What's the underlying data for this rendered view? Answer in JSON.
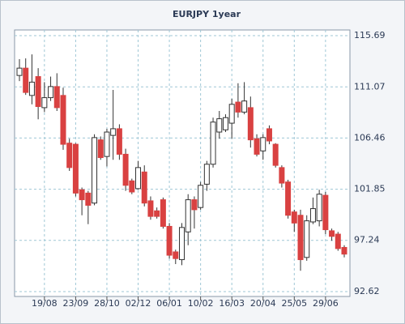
{
  "chart_data": {
    "type": "candlestick",
    "title": "EURJPY 1year",
    "categories": [
      null,
      null,
      null,
      null,
      "19/08",
      null,
      null,
      null,
      null,
      "23/09",
      null,
      null,
      null,
      null,
      "28/10",
      null,
      null,
      null,
      null,
      "02/12",
      null,
      null,
      null,
      null,
      "06/01",
      null,
      null,
      null,
      null,
      "10/02",
      null,
      null,
      null,
      null,
      "16/03",
      null,
      null,
      null,
      null,
      "20/04",
      null,
      null,
      null,
      null,
      "25/05",
      null,
      null,
      null,
      null,
      "29/06",
      null,
      null,
      null
    ],
    "open": [
      112.1,
      112.76,
      110.3,
      112.0,
      109.2,
      110.1,
      111.1,
      110.3,
      106.0,
      105.9,
      101.8,
      101.5,
      100.6,
      106.3,
      104.8,
      106.7,
      107.3,
      105.0,
      102.6,
      101.9,
      103.4,
      100.8,
      99.9,
      100.9,
      98.5,
      96.2,
      95.5,
      98.0,
      100.9,
      100.2,
      102.3,
      104.1,
      107.0,
      107.2,
      107.8,
      109.7,
      108.8,
      109.2,
      106.4,
      105.3,
      107.3,
      105.9,
      103.8,
      102.5,
      99.8,
      99.5,
      95.7,
      98.9,
      99.0,
      101.3,
      98.1,
      97.8,
      96.6
    ],
    "high": [
      113.57,
      113.64,
      114.0,
      112.76,
      111.5,
      112.0,
      112.3,
      111.0,
      106.4,
      106.0,
      102.0,
      101.7,
      106.8,
      106.6,
      107.3,
      110.8,
      107.7,
      105.5,
      102.8,
      104.4,
      104.0,
      101.2,
      100.2,
      101.1,
      98.8,
      96.4,
      98.8,
      101.4,
      101.2,
      102.5,
      104.4,
      108.3,
      108.9,
      108.6,
      110.0,
      111.4,
      111.5,
      110.2,
      106.8,
      106.8,
      107.6,
      106.0,
      104.0,
      102.7,
      100.0,
      100.0,
      99.5,
      101.1,
      101.8,
      101.6,
      98.3,
      98.0,
      96.8
    ],
    "low": [
      111.59,
      110.35,
      109.5,
      108.15,
      108.8,
      109.8,
      108.9,
      105.4,
      103.5,
      101.2,
      99.5,
      98.7,
      100.4,
      104.5,
      103.9,
      104.5,
      104.5,
      101.7,
      101.4,
      101.8,
      100.3,
      99.1,
      99.2,
      98.3,
      95.6,
      95.1,
      95.0,
      96.8,
      98.3,
      100.0,
      101.7,
      103.8,
      106.4,
      107.0,
      106.4,
      108.3,
      108.6,
      105.6,
      104.8,
      104.5,
      105.9,
      103.8,
      102.0,
      99.2,
      98.0,
      94.5,
      95.4,
      98.7,
      98.5,
      97.8,
      97.2,
      96.3,
      95.7
    ],
    "close": [
      112.76,
      110.57,
      111.5,
      109.3,
      110.1,
      111.1,
      109.2,
      105.9,
      103.8,
      101.5,
      100.9,
      100.4,
      106.5,
      104.7,
      107.0,
      107.3,
      105.0,
      102.2,
      101.6,
      103.8,
      100.6,
      99.4,
      99.4,
      98.5,
      95.9,
      95.6,
      98.4,
      100.9,
      100.0,
      102.2,
      104.1,
      107.9,
      108.2,
      108.3,
      109.5,
      108.8,
      109.8,
      106.3,
      105.0,
      106.5,
      106.2,
      104.0,
      102.4,
      99.5,
      98.8,
      95.5,
      99.0,
      100.1,
      101.4,
      98.2,
      97.6,
      96.5,
      96.0
    ],
    "up_color": "#ffffff",
    "down_color": "#d94141",
    "outline_color": "#333333",
    "ylim": [
      92.62,
      115.69
    ],
    "yticks": [
      92.62,
      97.24,
      101.85,
      106.46,
      111.07,
      115.69
    ],
    "grid": true
  }
}
